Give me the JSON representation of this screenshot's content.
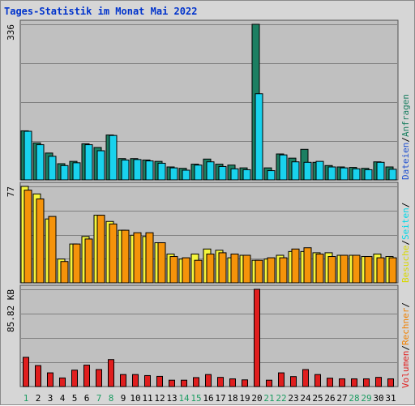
{
  "title": "Tages-Statistik im Monat Mai 2022",
  "colors": {
    "background": "#d6d6d6",
    "plot_background": "#c0c0c0",
    "gridline": "#808080",
    "anfragen": "#1c7f62",
    "dateien": "#19d2ed",
    "besuche": "#f5f53c",
    "rechner": "#f5930a",
    "volumen": "#e01e1e",
    "weekday_label": "#000000",
    "weekend_label": "#1c9c62",
    "legend_seiten": "#00d8e8",
    "legend_dateien": "#2050d0",
    "legend_anfragen": "#1c7f62",
    "legend_besuche": "#d8d800",
    "legend_rechner": "#f08000",
    "legend_volumen": "#e01e1e",
    "legend_separator": "#000000",
    "title": "#0033cc"
  },
  "axis_labels": {
    "top_max": "336",
    "middle_max": "77",
    "bottom_max": "85.82 KB"
  },
  "legend": {
    "top": [
      {
        "text": "Dateien",
        "color_key": "legend_dateien"
      },
      {
        "text": "/",
        "color_key": "legend_separator"
      },
      {
        "text": "Anfragen",
        "color_key": "legend_anfragen"
      }
    ],
    "middle": [
      {
        "text": "Besuche",
        "color_key": "legend_besuche"
      },
      {
        "text": "/",
        "color_key": "legend_separator"
      },
      {
        "text": "Seiten",
        "color_key": "legend_seiten"
      },
      {
        "text": "/",
        "color_key": "legend_separator"
      }
    ],
    "bottom": [
      {
        "text": "Volumen",
        "color_key": "legend_volumen"
      },
      {
        "text": "/",
        "color_key": "legend_separator"
      },
      {
        "text": "Rechner",
        "color_key": "legend_rechner"
      },
      {
        "text": "/",
        "color_key": "legend_separator"
      }
    ]
  },
  "chart_data": {
    "type": "bar",
    "categories": [
      "1",
      "2",
      "3",
      "4",
      "5",
      "6",
      "7",
      "8",
      "9",
      "10",
      "11",
      "12",
      "13",
      "14",
      "15",
      "16",
      "17",
      "18",
      "19",
      "20",
      "21",
      "22",
      "23",
      "24",
      "25",
      "26",
      "27",
      "28",
      "29",
      "30",
      "31"
    ],
    "weekend_days": [
      1,
      7,
      8,
      14,
      15,
      21,
      22,
      28,
      29
    ],
    "panels": [
      {
        "name": "anfragen_dateien",
        "ymax": 336,
        "series": [
          {
            "name": "Anfragen",
            "color_key": "anfragen",
            "values": [
              106,
              80,
              58,
              35,
              40,
              78,
              70,
              97,
              46,
              46,
              43,
              40,
              28,
              25,
              34,
              45,
              34,
              32,
              26,
              336,
              26,
              56,
              47,
              66,
              38,
              31,
              28,
              27,
              25,
              39,
              28
            ]
          },
          {
            "name": "Dateien",
            "color_key": "dateien",
            "values": [
              105,
              76,
              51,
              31,
              37,
              76,
              63,
              96,
              43,
              44,
              41,
              36,
              26,
              21,
              32,
              39,
              29,
              24,
              22,
              186,
              20,
              54,
              39,
              38,
              40,
              28,
              26,
              24,
              22,
              38,
              23
            ]
          }
        ]
      },
      {
        "name": "besuche_rechner",
        "ymax": 77,
        "series": [
          {
            "name": "Besuche",
            "color_key": "besuche",
            "values": [
              77,
              71,
              51,
              19,
              31,
              37,
              54,
              49,
              42,
              38,
              37,
              32,
              23,
              19,
              23,
              27,
              26,
              20,
              22,
              18,
              19,
              22,
              25,
              25,
              24,
              24,
              22,
              22,
              21,
              23,
              21
            ]
          },
          {
            "name": "Rechner",
            "color_key": "rechner",
            "values": [
              74,
              67,
              53,
              17,
              31,
              35,
              54,
              47,
              42,
              40,
              40,
              32,
              21,
              20,
              18,
              23,
              24,
              23,
              22,
              18,
              20,
              20,
              27,
              28,
              23,
              21,
              22,
              22,
              21,
              20,
              20
            ]
          }
        ]
      },
      {
        "name": "volumen",
        "ymax": 85.82,
        "unit": "KB",
        "series": [
          {
            "name": "Volumen",
            "color_key": "volumen",
            "values": [
              25.8,
              18.5,
              12.1,
              7.6,
              14.5,
              18.9,
              15.0,
              23.8,
              10.6,
              10.6,
              9.7,
              9.0,
              5.6,
              5.6,
              7.9,
              10.6,
              8.1,
              6.8,
              5.9,
              85.8,
              5.6,
              12.1,
              8.8,
              15.0,
              10.6,
              7.4,
              6.8,
              6.8,
              6.8,
              8.1,
              6.8
            ]
          }
        ]
      }
    ],
    "title": "Tages-Statistik im Monat Mai 2022",
    "xlabel": "",
    "ylabel": "",
    "grid": true,
    "legend_position": "right-vertical"
  }
}
